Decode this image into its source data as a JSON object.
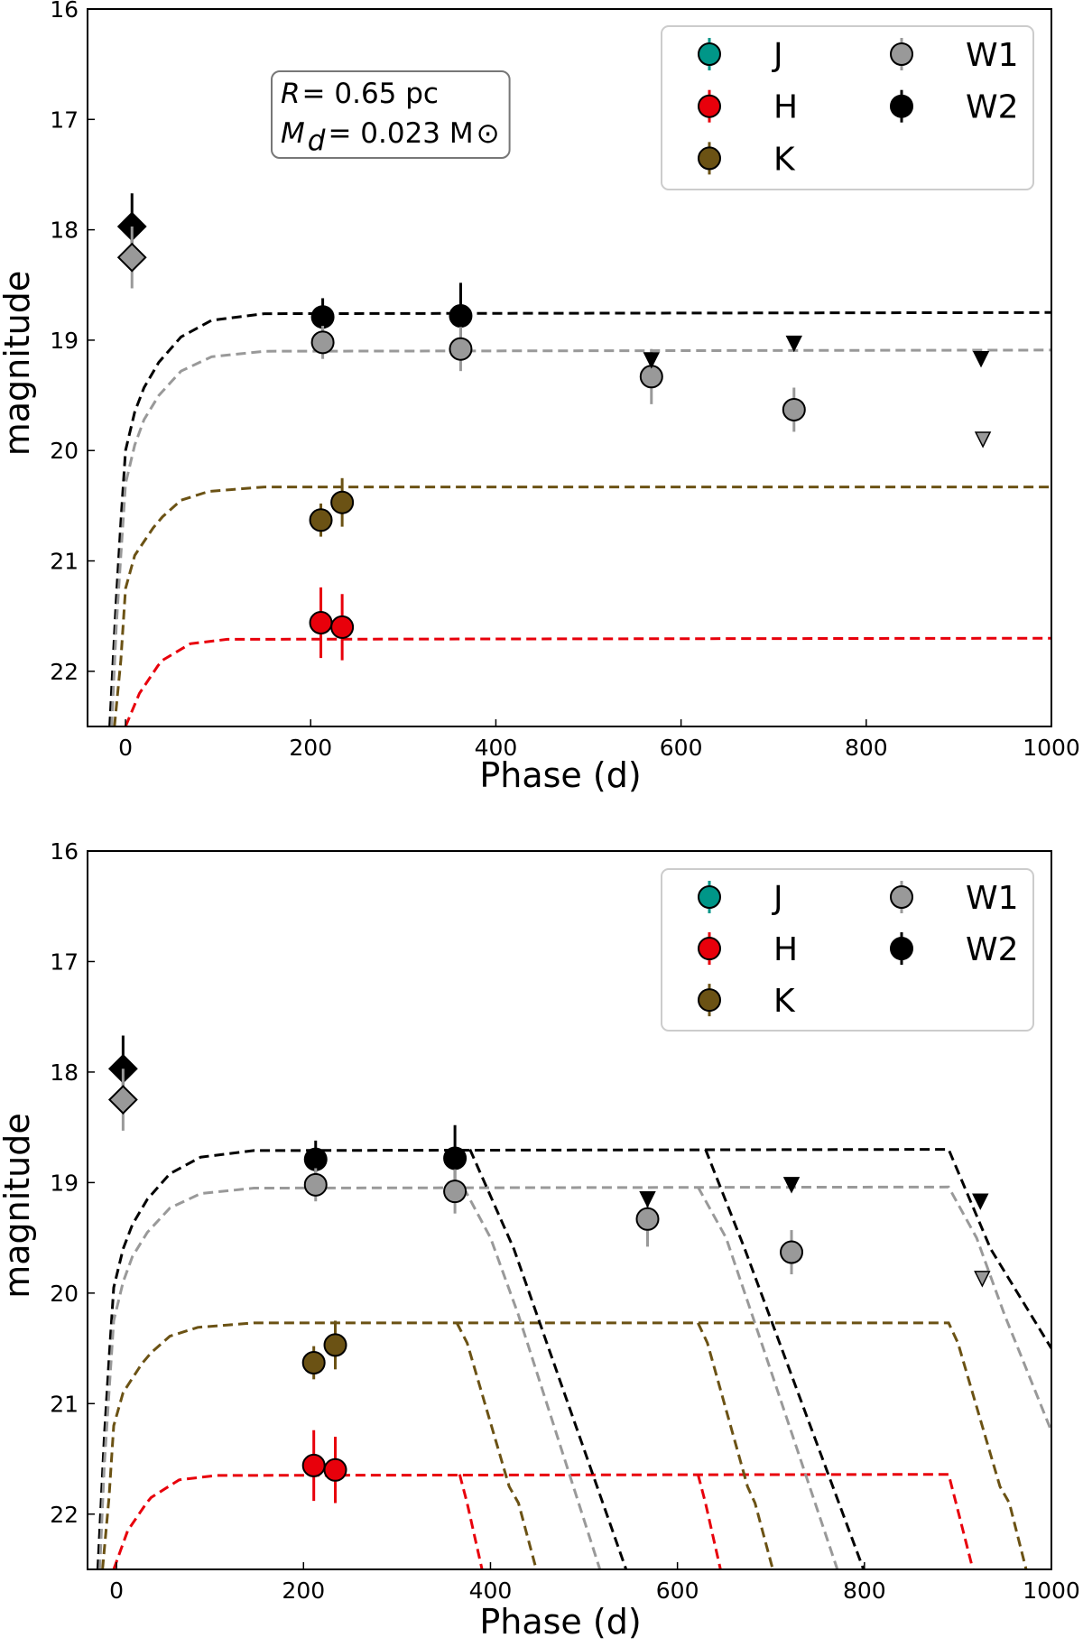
{
  "chart_data": [
    {
      "type": "scatter",
      "xlabel": "Phase (d)",
      "ylabel": "magnitude",
      "xlim": [
        -41,
        1000
      ],
      "ylim": [
        22.5,
        16
      ],
      "y_inverted": true,
      "xticks": [
        0,
        200,
        400,
        600,
        800,
        1000
      ],
      "yticks": [
        16,
        17,
        18,
        19,
        20,
        21,
        22
      ],
      "grid": false,
      "legend_placement": "top-right",
      "annotation": {
        "line1_var": "R",
        "line1_rest": " = 0.65 pc",
        "line2_var": "M",
        "line2_sub": "d",
        "line2_rest": " = 0.023 M",
        "line2_symbol": "⊙"
      },
      "legend": [
        "J",
        "H",
        "K",
        "W1",
        "W2"
      ],
      "colors": {
        "J": "#009688",
        "H": "#e8000b",
        "K": "#6b5214",
        "W1": "#999999",
        "W2": "#000000"
      },
      "points": [
        {
          "band": "W2",
          "marker": "diamond",
          "x": 7,
          "y": 17.97,
          "err": 0.3
        },
        {
          "band": "W1",
          "marker": "diamond",
          "x": 7,
          "y": 18.25,
          "err": 0.28
        },
        {
          "band": "W2",
          "marker": "circle",
          "x": 213,
          "y": 18.79,
          "err": 0.17
        },
        {
          "band": "W2",
          "marker": "circle",
          "x": 362,
          "y": 18.78,
          "err": 0.3
        },
        {
          "band": "W1",
          "marker": "circle",
          "x": 213,
          "y": 19.02,
          "err": 0.15
        },
        {
          "band": "W1",
          "marker": "circle",
          "x": 362,
          "y": 19.08,
          "err": 0.2
        },
        {
          "band": "W1",
          "marker": "circle",
          "x": 568,
          "y": 19.33,
          "err": 0.25
        },
        {
          "band": "W1",
          "marker": "circle",
          "x": 722,
          "y": 19.63,
          "err": 0.2
        },
        {
          "band": "K",
          "marker": "circle",
          "x": 211,
          "y": 20.63,
          "err": 0.15
        },
        {
          "band": "K",
          "marker": "circle",
          "x": 234,
          "y": 20.47,
          "err": 0.22
        },
        {
          "band": "H",
          "marker": "circle",
          "x": 211,
          "y": 21.56,
          "err": 0.32
        },
        {
          "band": "H",
          "marker": "circle",
          "x": 234,
          "y": 21.6,
          "err": 0.3
        }
      ],
      "upper_limits": [
        {
          "band": "W2",
          "x": 568,
          "y": 19.18
        },
        {
          "band": "W2",
          "x": 722,
          "y": 19.03
        },
        {
          "band": "W2",
          "x": 924,
          "y": 19.17
        },
        {
          "band": "W1",
          "x": 926,
          "y": 19.9
        }
      ],
      "models": [
        {
          "band": "W2",
          "x": [
            -17,
            -10,
            -5,
            0,
            10,
            20,
            36,
            60,
            93,
            150,
            1000
          ],
          "y": [
            22.5,
            21.35,
            20.65,
            20.0,
            19.65,
            19.43,
            19.2,
            18.97,
            18.82,
            18.76,
            18.75
          ]
        },
        {
          "band": "W1",
          "x": [
            -15,
            -10,
            -5,
            0,
            10,
            20,
            36,
            60,
            93,
            150,
            1000
          ],
          "y": [
            22.5,
            21.6,
            20.95,
            20.3,
            19.95,
            19.72,
            19.5,
            19.28,
            19.15,
            19.1,
            19.09
          ]
        },
        {
          "band": "K",
          "x": [
            -12,
            -5,
            0,
            10,
            30,
            40,
            60,
            90,
            150,
            1000
          ],
          "y": [
            22.5,
            21.9,
            21.25,
            20.95,
            20.7,
            20.6,
            20.45,
            20.37,
            20.33,
            20.33
          ]
        },
        {
          "band": "H",
          "x": [
            0,
            15,
            35,
            40,
            70,
            110,
            1000
          ],
          "y": [
            22.5,
            22.2,
            21.95,
            21.9,
            21.75,
            21.71,
            21.7
          ]
        }
      ]
    },
    {
      "type": "scatter",
      "xlabel": "Phase (d)",
      "ylabel": "magnitude",
      "xlim": [
        -31,
        1000
      ],
      "ylim": [
        22.5,
        16
      ],
      "y_inverted": true,
      "xticks": [
        0,
        200,
        400,
        600,
        800,
        1000
      ],
      "yticks": [
        16,
        17,
        18,
        19,
        20,
        21,
        22
      ],
      "grid": false,
      "legend_placement": "top-right",
      "legend": [
        "J",
        "H",
        "K",
        "W1",
        "W2"
      ],
      "colors": {
        "J": "#009688",
        "H": "#e8000b",
        "K": "#6b5214",
        "W1": "#999999",
        "W2": "#000000"
      },
      "points": [
        {
          "band": "W2",
          "marker": "diamond",
          "x": 7,
          "y": 17.97,
          "err": 0.3
        },
        {
          "band": "W1",
          "marker": "diamond",
          "x": 7,
          "y": 18.25,
          "err": 0.28
        },
        {
          "band": "W2",
          "marker": "circle",
          "x": 213,
          "y": 18.79,
          "err": 0.17
        },
        {
          "band": "W2",
          "marker": "circle",
          "x": 362,
          "y": 18.78,
          "err": 0.3
        },
        {
          "band": "W1",
          "marker": "circle",
          "x": 213,
          "y": 19.02,
          "err": 0.15
        },
        {
          "band": "W1",
          "marker": "circle",
          "x": 362,
          "y": 19.08,
          "err": 0.2
        },
        {
          "band": "W1",
          "marker": "circle",
          "x": 568,
          "y": 19.33,
          "err": 0.25
        },
        {
          "band": "W1",
          "marker": "circle",
          "x": 722,
          "y": 19.63,
          "err": 0.2
        },
        {
          "band": "K",
          "marker": "circle",
          "x": 211,
          "y": 20.63,
          "err": 0.15
        },
        {
          "band": "K",
          "marker": "circle",
          "x": 234,
          "y": 20.47,
          "err": 0.22
        },
        {
          "band": "H",
          "marker": "circle",
          "x": 211,
          "y": 21.56,
          "err": 0.32
        },
        {
          "band": "H",
          "marker": "circle",
          "x": 234,
          "y": 21.6,
          "err": 0.3
        }
      ],
      "upper_limits": [
        {
          "band": "W2",
          "x": 568,
          "y": 19.15
        },
        {
          "band": "W2",
          "x": 722,
          "y": 19.02
        },
        {
          "band": "W2",
          "x": 924,
          "y": 19.17
        },
        {
          "band": "W1",
          "x": 926,
          "y": 19.87
        }
      ],
      "models": [
        {
          "band": "W2",
          "x": [
            -20,
            -13,
            -8,
            -3,
            7,
            17,
            33,
            57,
            90,
            147,
            890,
            935,
            1000
          ],
          "y": [
            22.5,
            21.3,
            20.6,
            19.95,
            19.6,
            19.38,
            19.15,
            18.92,
            18.77,
            18.71,
            18.7,
            19.6,
            20.5
          ]
        },
        {
          "band": "W1",
          "x": [
            -18,
            -13,
            -8,
            -3,
            7,
            17,
            33,
            57,
            90,
            147,
            890,
            920,
            950,
            1000
          ],
          "y": [
            22.5,
            21.55,
            20.9,
            20.25,
            19.9,
            19.67,
            19.45,
            19.23,
            19.1,
            19.05,
            19.04,
            19.5,
            20.2,
            21.25
          ]
        },
        {
          "band": "K",
          "x": [
            -15,
            -8,
            -3,
            7,
            27,
            37,
            57,
            87,
            147,
            890,
            900,
            945,
            955,
            973
          ],
          "y": [
            22.5,
            21.85,
            21.2,
            20.9,
            20.64,
            20.54,
            20.39,
            20.31,
            20.27,
            20.27,
            20.45,
            21.75,
            21.9,
            22.5
          ]
        },
        {
          "band": "H",
          "x": [
            -3,
            12,
            32,
            37,
            67,
            107,
            890,
            898,
            916
          ],
          "y": [
            22.5,
            22.15,
            21.9,
            21.85,
            21.69,
            21.65,
            21.64,
            21.9,
            22.5
          ]
        },
        {
          "band": "W2",
          "x": [
            378,
            425,
            545
          ],
          "y": [
            18.7,
            19.6,
            22.5
          ]
        },
        {
          "band": "W1",
          "x": [
            371,
            400,
            430,
            517
          ],
          "y": [
            19.04,
            19.5,
            20.2,
            22.5
          ]
        },
        {
          "band": "K",
          "x": [
            364,
            375,
            420,
            430,
            449
          ],
          "y": [
            20.27,
            20.45,
            21.75,
            21.9,
            22.5
          ]
        },
        {
          "band": "H",
          "x": [
            367,
            375,
            391
          ],
          "y": [
            21.64,
            21.9,
            22.5
          ]
        },
        {
          "band": "W2",
          "x": [
            630,
            672,
            799
          ],
          "y": [
            18.7,
            19.6,
            22.5
          ]
        },
        {
          "band": "W1",
          "x": [
            622,
            652,
            680,
            771
          ],
          "y": [
            19.04,
            19.5,
            20.2,
            22.5
          ]
        },
        {
          "band": "K",
          "x": [
            622,
            632,
            675,
            683,
            702
          ],
          "y": [
            20.27,
            20.45,
            21.75,
            21.9,
            22.5
          ]
        },
        {
          "band": "H",
          "x": [
            622,
            630,
            646
          ],
          "y": [
            21.64,
            21.9,
            22.5
          ]
        }
      ]
    }
  ]
}
